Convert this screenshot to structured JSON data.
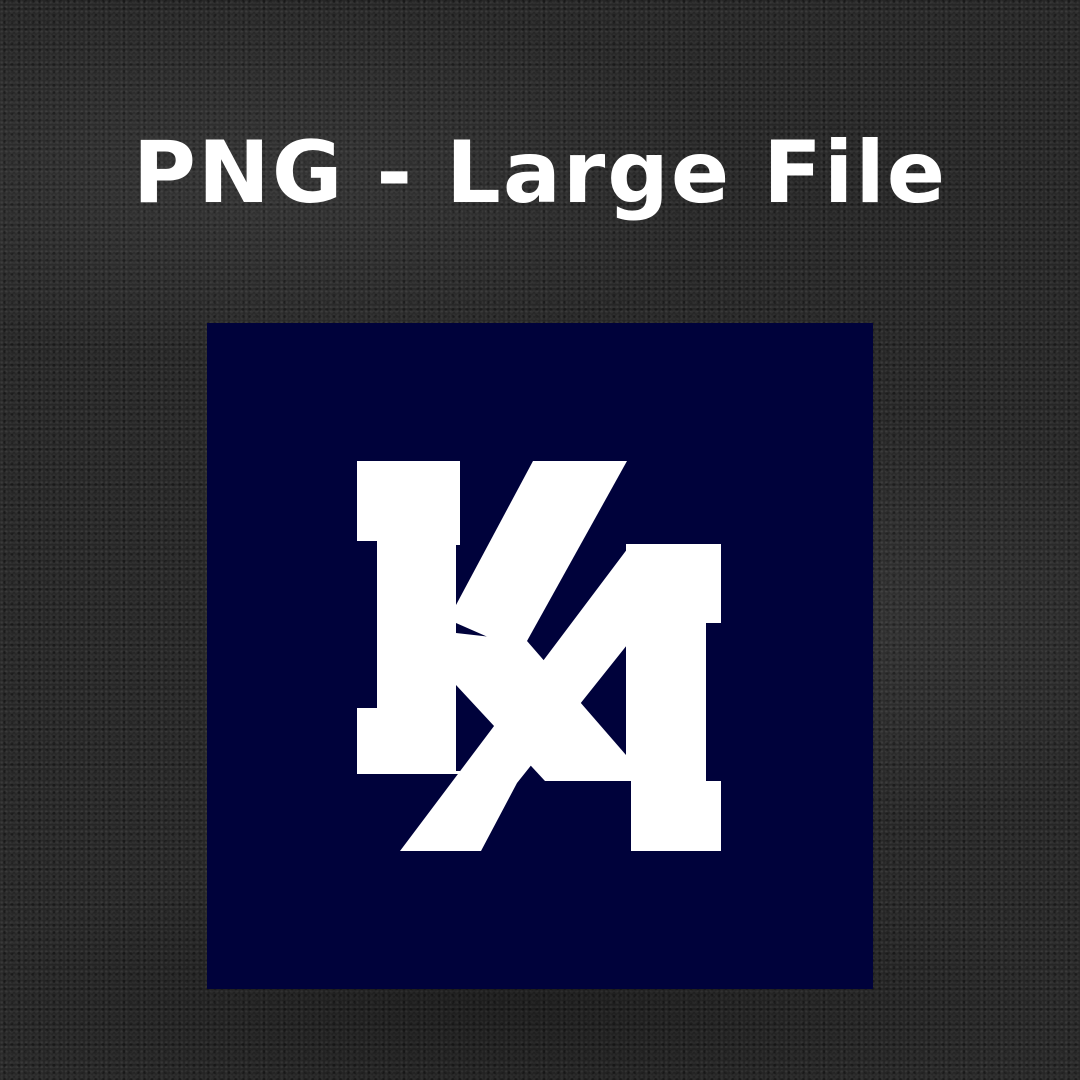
{
  "headline": "PNG - Large File",
  "logo": {
    "monogram": "KA",
    "tile_color": "#00023b",
    "mark_color": "#ffffff"
  },
  "background": {
    "texture": "dark-sand",
    "color": "#262626"
  }
}
